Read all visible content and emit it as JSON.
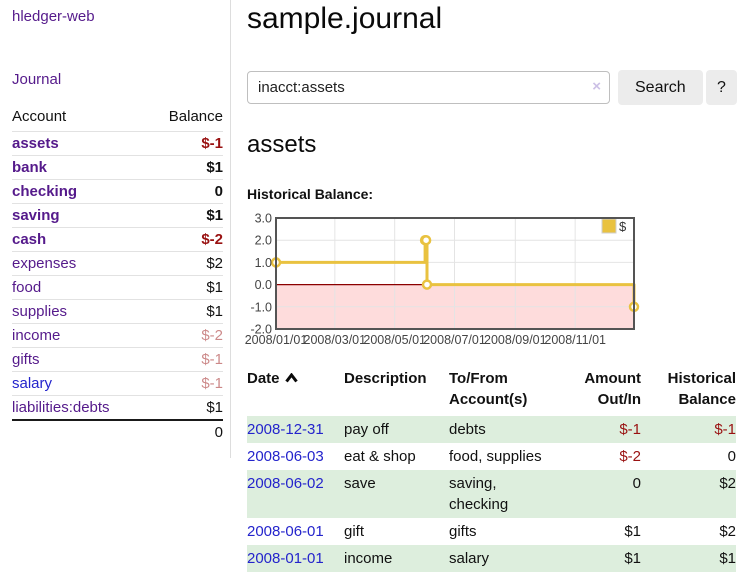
{
  "sidebar": {
    "app_title": "hledger-web",
    "journal_label": "Journal",
    "accounts": {
      "headers": {
        "account": "Account",
        "balance": "Balance"
      },
      "rows": [
        {
          "name": "assets",
          "balance": "$-1",
          "indent": 0,
          "emphasis": true,
          "balance_style": "negative",
          "link_style": "purple"
        },
        {
          "name": "bank",
          "balance": "$1",
          "indent": 1,
          "emphasis": true,
          "balance_style": "normal",
          "link_style": "purple"
        },
        {
          "name": "checking",
          "balance": "0",
          "indent": 2,
          "emphasis": true,
          "balance_style": "normal",
          "link_style": "purple"
        },
        {
          "name": "saving",
          "balance": "$1",
          "indent": 2,
          "emphasis": true,
          "balance_style": "normal",
          "link_style": "purple"
        },
        {
          "name": "cash",
          "balance": "$-2",
          "indent": 1,
          "emphasis": true,
          "balance_style": "negative",
          "link_style": "purple"
        },
        {
          "name": "expenses",
          "balance": "$2",
          "indent": 0,
          "emphasis": false,
          "balance_style": "normal",
          "link_style": "purple"
        },
        {
          "name": "food",
          "balance": "$1",
          "indent": 1,
          "emphasis": false,
          "balance_style": "normal",
          "link_style": "purple"
        },
        {
          "name": "supplies",
          "balance": "$1",
          "indent": 1,
          "emphasis": false,
          "balance_style": "normal",
          "link_style": "purple"
        },
        {
          "name": "income",
          "balance": "$-2",
          "indent": 0,
          "emphasis": false,
          "balance_style": "negative-soft",
          "link_style": "purple"
        },
        {
          "name": "gifts",
          "balance": "$-1",
          "indent": 1,
          "emphasis": false,
          "balance_style": "negative-soft",
          "link_style": "purple"
        },
        {
          "name": "salary",
          "balance": "$-1",
          "indent": 1,
          "emphasis": false,
          "balance_style": "negative-soft",
          "link_style": "blue"
        },
        {
          "name": "liabilities:debts",
          "balance": "$1",
          "indent": 0,
          "emphasis": false,
          "balance_style": "normal",
          "link_style": "purple"
        }
      ],
      "total": "0"
    }
  },
  "main": {
    "page_title": "sample.journal",
    "search": {
      "value": "inacct:assets",
      "clear_icon": "×",
      "button_label": "Search",
      "help_label": "?"
    },
    "account_heading": "assets",
    "chart_label": "Historical Balance:"
  },
  "chart_data": {
    "type": "line",
    "step": true,
    "title": "Historical Balance:",
    "series": [
      {
        "name": "$",
        "color": "#e9c240",
        "points": [
          [
            "2008-01-01",
            1
          ],
          [
            "2008-06-01",
            2
          ],
          [
            "2008-06-02",
            2
          ],
          [
            "2008-06-03",
            0
          ],
          [
            "2008-12-31",
            -1
          ]
        ]
      }
    ],
    "x_range": [
      "2008-01-01",
      "2008-12-31"
    ],
    "ylim": [
      -2,
      3
    ],
    "yticks": [
      "3.0",
      "2.0",
      "1.0",
      "0.0",
      "-1.0",
      "-2.0"
    ],
    "xticks": [
      "2008/01/01",
      "2008/03/01",
      "2008/05/01",
      "2008/07/01",
      "2008/09/01",
      "2008/11/01"
    ],
    "legend": {
      "label": "$",
      "position": "top-right"
    },
    "grid": true,
    "negative_region_color": "#fedcdc",
    "zero_line_color": "#8b0000",
    "border_color": "#545454",
    "gridline_color": "#e4e4e4"
  },
  "register": {
    "headers": {
      "date": "Date",
      "description": "Description",
      "accounts": "To/From\nAccount(s)",
      "amount": "Amount\nOut/In",
      "balance": "Historical\nBalance"
    },
    "rows": [
      {
        "date": "2008-12-31",
        "description": "pay off",
        "accounts": "debts",
        "amount": "$-1",
        "amount_negative": true,
        "balance": "$-1",
        "balance_negative": true,
        "highlighted": true
      },
      {
        "date": "2008-06-03",
        "description": "eat & shop",
        "accounts": "food, supplies",
        "amount": "$-2",
        "amount_negative": true,
        "balance": "0",
        "balance_negative": false,
        "highlighted": false
      },
      {
        "date": "2008-06-02",
        "description": "save",
        "accounts": "saving,\nchecking",
        "amount": "0",
        "amount_negative": false,
        "balance": "$2",
        "balance_negative": false,
        "highlighted": true
      },
      {
        "date": "2008-06-01",
        "description": "gift",
        "accounts": "gifts",
        "amount": "$1",
        "amount_negative": false,
        "balance": "$2",
        "balance_negative": false,
        "highlighted": false
      },
      {
        "date": "2008-01-01",
        "description": "income",
        "accounts": "salary",
        "amount": "$1",
        "amount_negative": false,
        "balance": "$1",
        "balance_negative": false,
        "highlighted": true
      }
    ]
  }
}
